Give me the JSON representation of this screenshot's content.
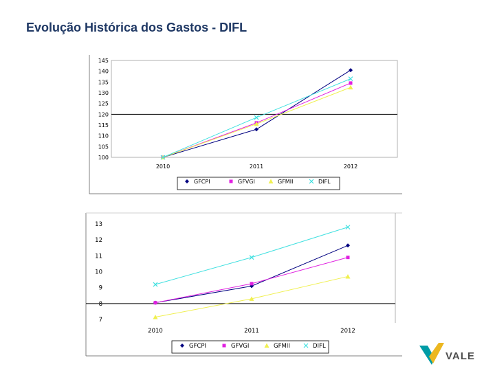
{
  "slide": {
    "title": "Evolução Histórica dos Gastos - DIFL"
  },
  "brand": {
    "name": "VALE",
    "colors": {
      "teal": "#009ca6",
      "yellow": "#ecb720"
    }
  },
  "colors": {
    "GFCPI": "#000080",
    "GFVGI": "#e020e0",
    "GFMII": "#f0f050",
    "DIFL": "#40e0e0"
  },
  "chart_data": [
    {
      "type": "line",
      "x": [
        "2010",
        "2011",
        "2012"
      ],
      "ylim": [
        100,
        145
      ],
      "yticks": [
        "100",
        "105",
        "110",
        "115",
        "120",
        "125",
        "130",
        "135",
        "140",
        "145"
      ],
      "reference_line": 120,
      "series": [
        {
          "name": "GFCPI",
          "marker": "diamond",
          "values": [
            100,
            113,
            140.5
          ]
        },
        {
          "name": "GFVGI",
          "marker": "square",
          "values": [
            100,
            116,
            134.5
          ]
        },
        {
          "name": "GFMII",
          "marker": "triangle",
          "values": [
            100,
            115.5,
            132.5
          ]
        },
        {
          "name": "DIFL",
          "marker": "x",
          "values": [
            100,
            118.5,
            136.5
          ]
        }
      ],
      "legend": [
        "GFCPI",
        "GFVGI",
        "GFMII",
        "DIFL"
      ]
    },
    {
      "type": "line",
      "x": [
        "2010",
        "2011",
        "2012"
      ],
      "ylim": [
        7,
        13
      ],
      "yticks": [
        "7",
        "8",
        "9",
        "10",
        "11",
        "12",
        "13"
      ],
      "reference_line": 8,
      "series": [
        {
          "name": "GFCPI",
          "marker": "diamond",
          "values": [
            8.05,
            9.1,
            11.65
          ]
        },
        {
          "name": "GFVGI",
          "marker": "square",
          "values": [
            8.05,
            9.25,
            10.9
          ]
        },
        {
          "name": "GFMII",
          "marker": "triangle",
          "values": [
            7.15,
            8.3,
            9.7
          ]
        },
        {
          "name": "DIFL",
          "marker": "x",
          "values": [
            9.2,
            10.9,
            12.8
          ]
        }
      ],
      "legend": [
        "GFCPI",
        "GFVGI",
        "GFMII",
        "DIFL"
      ]
    }
  ]
}
